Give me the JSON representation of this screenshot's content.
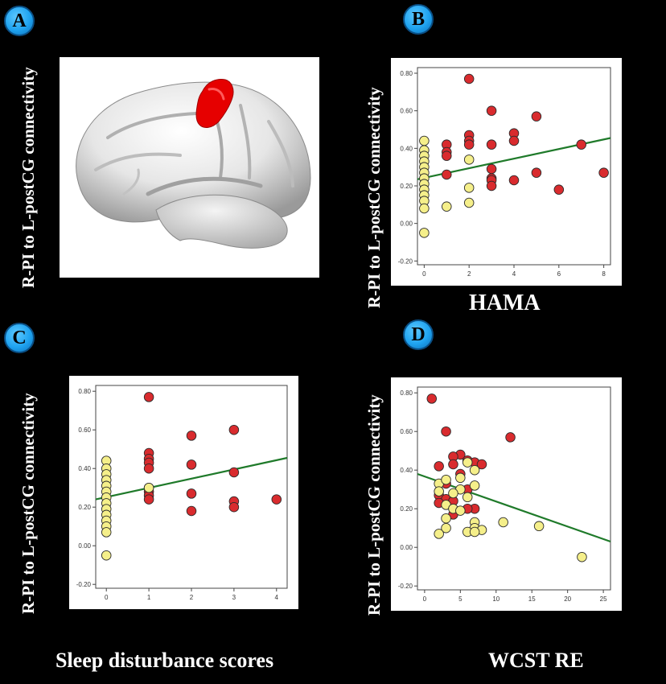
{
  "panel_labels": [
    "A",
    "B",
    "C",
    "D"
  ],
  "y_axis_label": "R-PI to L-postCG connectivity",
  "x_axis_titles": {
    "B": "HAMA",
    "C": "Sleep disturbance scores",
    "D": "WCST RE"
  },
  "colors": {
    "group1_fill": "#d92b2e",
    "group2_fill": "#f5ef8a",
    "fit_line": "#1f7a2a",
    "brain_region": "#e60000",
    "badge": "#1fa3f0"
  },
  "chart_data": [
    {
      "panel": "B",
      "type": "scatter",
      "xlabel": "HAMA",
      "ylabel": "R-PI to L-postCG connectivity",
      "xlim": [
        -0.3,
        8.3
      ],
      "ylim": [
        -0.22,
        0.83
      ],
      "xticks": [
        0,
        2,
        4,
        6,
        8
      ],
      "yticks": [
        -0.2,
        0.0,
        0.2,
        0.4,
        0.6,
        0.8
      ],
      "ytick_labels": [
        "-0.20",
        "0.00",
        "0.20",
        "0.40",
        "0.60",
        "0.80"
      ],
      "grid": false,
      "series": [
        {
          "group": "red",
          "points": [
            [
              1,
              0.42
            ],
            [
              1,
              0.38
            ],
            [
              1,
              0.36
            ],
            [
              1,
              0.26
            ],
            [
              2,
              0.77
            ],
            [
              2,
              0.47
            ],
            [
              2,
              0.44
            ],
            [
              2,
              0.42
            ],
            [
              3,
              0.6
            ],
            [
              3,
              0.42
            ],
            [
              3,
              0.29
            ],
            [
              3,
              0.24
            ],
            [
              3,
              0.23
            ],
            [
              3,
              0.2
            ],
            [
              4,
              0.48
            ],
            [
              4,
              0.44
            ],
            [
              4,
              0.23
            ],
            [
              5,
              0.57
            ],
            [
              5,
              0.27
            ],
            [
              6,
              0.18
            ],
            [
              7,
              0.42
            ],
            [
              8,
              0.27
            ]
          ]
        },
        {
          "group": "yellow",
          "points": [
            [
              0,
              0.44
            ],
            [
              0,
              0.39
            ],
            [
              0,
              0.36
            ],
            [
              0,
              0.33
            ],
            [
              0,
              0.3
            ],
            [
              0,
              0.27
            ],
            [
              0,
              0.24
            ],
            [
              0,
              0.21
            ],
            [
              0,
              0.18
            ],
            [
              0,
              0.15
            ],
            [
              0,
              0.12
            ],
            [
              0,
              0.08
            ],
            [
              0,
              -0.05
            ],
            [
              1,
              0.09
            ],
            [
              2,
              0.34
            ],
            [
              2,
              0.19
            ],
            [
              2,
              0.11
            ]
          ]
        }
      ],
      "fit_line": [
        [
          -0.3,
          0.235
        ],
        [
          8.3,
          0.455
        ]
      ]
    },
    {
      "panel": "C",
      "type": "scatter",
      "xlabel": "Sleep disturbance scores",
      "ylabel": "R-PI to L-postCG connectivity",
      "xlim": [
        -0.25,
        4.25
      ],
      "ylim": [
        -0.22,
        0.83
      ],
      "xticks": [
        0,
        1,
        2,
        3,
        4
      ],
      "yticks": [
        -0.2,
        0.0,
        0.2,
        0.4,
        0.6,
        0.8
      ],
      "ytick_labels": [
        "-0.20",
        "0.00",
        "0.20",
        "0.40",
        "0.60",
        "0.80"
      ],
      "grid": false,
      "series": [
        {
          "group": "red",
          "points": [
            [
              1,
              0.77
            ],
            [
              1,
              0.48
            ],
            [
              1,
              0.45
            ],
            [
              1,
              0.43
            ],
            [
              1,
              0.4
            ],
            [
              1,
              0.3
            ],
            [
              1,
              0.28
            ],
            [
              1,
              0.26
            ],
            [
              1,
              0.24
            ],
            [
              2,
              0.57
            ],
            [
              2,
              0.42
            ],
            [
              2,
              0.27
            ],
            [
              2,
              0.18
            ],
            [
              3,
              0.6
            ],
            [
              3,
              0.38
            ],
            [
              3,
              0.23
            ],
            [
              3,
              0.2
            ],
            [
              4,
              0.24
            ]
          ]
        },
        {
          "group": "yellow",
          "points": [
            [
              0,
              0.44
            ],
            [
              0,
              0.4
            ],
            [
              0,
              0.37
            ],
            [
              0,
              0.34
            ],
            [
              0,
              0.31
            ],
            [
              0,
              0.28
            ],
            [
              0,
              0.25
            ],
            [
              0,
              0.22
            ],
            [
              0,
              0.19
            ],
            [
              0,
              0.16
            ],
            [
              0,
              0.13
            ],
            [
              0,
              0.1
            ],
            [
              0,
              0.07
            ],
            [
              0,
              -0.05
            ],
            [
              1,
              0.3
            ]
          ]
        }
      ],
      "fit_line": [
        [
          -0.25,
          0.24
        ],
        [
          4.25,
          0.455
        ]
      ]
    },
    {
      "panel": "D",
      "type": "scatter",
      "xlabel": "WCST RE",
      "ylabel": "R-PI to L-postCG connectivity",
      "xlim": [
        -1,
        26
      ],
      "ylim": [
        -0.22,
        0.83
      ],
      "xticks": [
        0,
        5,
        10,
        15,
        20,
        25
      ],
      "yticks": [
        -0.2,
        0.0,
        0.2,
        0.4,
        0.6,
        0.8
      ],
      "ytick_labels": [
        "-0.20",
        "0.00",
        "0.20",
        "0.40",
        "0.60",
        "0.80"
      ],
      "grid": false,
      "series": [
        {
          "group": "red",
          "points": [
            [
              1,
              0.77
            ],
            [
              3,
              0.6
            ],
            [
              12,
              0.57
            ],
            [
              5,
              0.48
            ],
            [
              4,
              0.47
            ],
            [
              6,
              0.45
            ],
            [
              2,
              0.42
            ],
            [
              4,
              0.43
            ],
            [
              7,
              0.44
            ],
            [
              8,
              0.43
            ],
            [
              5,
              0.38
            ],
            [
              3,
              0.33
            ],
            [
              6,
              0.3
            ],
            [
              2,
              0.27
            ],
            [
              3,
              0.25
            ],
            [
              4,
              0.24
            ],
            [
              2,
              0.23
            ],
            [
              7,
              0.2
            ],
            [
              4,
              0.17
            ],
            [
              6,
              0.2
            ]
          ]
        },
        {
          "group": "yellow",
          "points": [
            [
              6,
              0.44
            ],
            [
              7,
              0.4
            ],
            [
              5,
              0.36
            ],
            [
              2,
              0.33
            ],
            [
              3,
              0.35
            ],
            [
              5,
              0.3
            ],
            [
              4,
              0.28
            ],
            [
              6,
              0.26
            ],
            [
              7,
              0.32
            ],
            [
              2,
              0.29
            ],
            [
              3,
              0.22
            ],
            [
              4,
              0.2
            ],
            [
              5,
              0.19
            ],
            [
              3,
              0.15
            ],
            [
              7,
              0.13
            ],
            [
              7,
              0.1
            ],
            [
              3,
              0.1
            ],
            [
              11,
              0.13
            ],
            [
              16,
              0.11
            ],
            [
              2,
              0.07
            ],
            [
              6,
              0.08
            ],
            [
              8,
              0.09
            ],
            [
              7,
              0.08
            ],
            [
              22,
              -0.05
            ]
          ]
        }
      ],
      "fit_line": [
        [
          -1,
          0.38
        ],
        [
          26,
          0.03
        ]
      ]
    }
  ]
}
